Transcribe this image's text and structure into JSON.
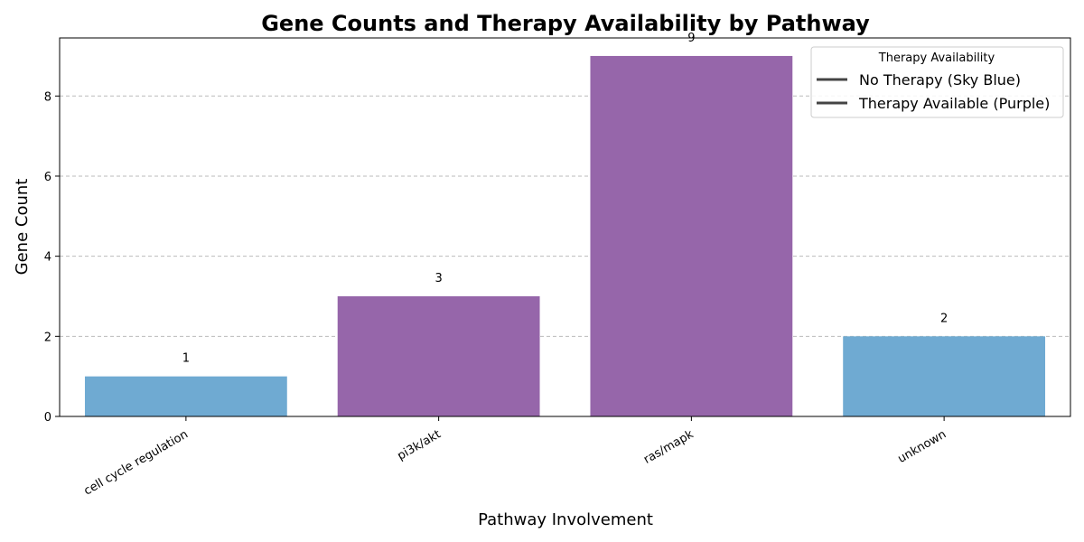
{
  "chart_data": {
    "type": "bar",
    "title": "Gene Counts and Therapy Availability by Pathway",
    "xlabel": "Pathway Involvement",
    "ylabel": "Gene Count",
    "categories": [
      "cell cycle regulation",
      "pi3k/akt",
      "ras/mapk",
      "unknown"
    ],
    "values": [
      1,
      3,
      9,
      2
    ],
    "data_labels": [
      "1",
      "3",
      "9",
      "2"
    ],
    "therapy_available": [
      false,
      true,
      true,
      false
    ],
    "colors": {
      "no_therapy": "#6faad2",
      "therapy_available": "#9666aa",
      "legend_line": "#444444",
      "grid": "#bbbbbb"
    },
    "ylim": [
      0,
      9.45
    ],
    "yticks": [
      0,
      2,
      4,
      6,
      8
    ],
    "ytick_labels": [
      "0",
      "2",
      "4",
      "6",
      "8"
    ],
    "grid": "y-dashed",
    "legend": {
      "title": "Therapy Availability",
      "placement": "top-right",
      "entries": [
        "No Therapy (Sky Blue)",
        "Therapy Available (Purple)"
      ]
    }
  }
}
